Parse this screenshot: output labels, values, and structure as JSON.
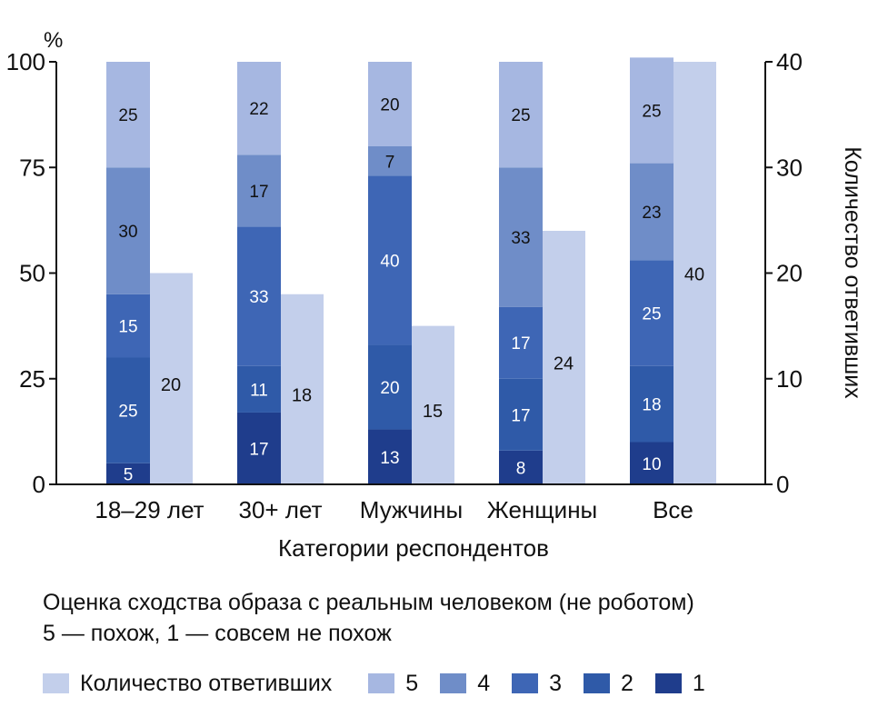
{
  "chart_data": {
    "type": "bar",
    "title": "",
    "xlabel": "Категории респондентов",
    "ylabel_left": "%",
    "ylabel_right": "Количество ответивших",
    "ylim_left": [
      0,
      100
    ],
    "ylim_right": [
      0,
      40
    ],
    "yticks_left": [
      "0",
      "25",
      "50",
      "75",
      "100"
    ],
    "yticks_right": [
      "0",
      "10",
      "20",
      "30",
      "40"
    ],
    "categories": [
      "18–29 лет",
      "30+ лет",
      "Мужчины",
      "Женщины",
      "Все"
    ],
    "stack_order": [
      "1",
      "2",
      "3",
      "4",
      "5"
    ],
    "series": [
      {
        "name": "1",
        "color": "#1f3d8c",
        "values": [
          5,
          17,
          13,
          8,
          10
        ]
      },
      {
        "name": "2",
        "color": "#2f5aa8",
        "values": [
          25,
          11,
          20,
          17,
          18
        ]
      },
      {
        "name": "3",
        "color": "#3e66b5",
        "values": [
          15,
          33,
          40,
          17,
          25
        ]
      },
      {
        "name": "4",
        "color": "#6f8dc8",
        "values": [
          30,
          17,
          7,
          33,
          23
        ]
      },
      {
        "name": "5",
        "color": "#a6b7e1",
        "values": [
          25,
          22,
          20,
          25,
          25
        ]
      }
    ],
    "count_series": {
      "name": "Количество ответивших",
      "color": "#c3cfeb",
      "values": [
        20,
        18,
        15,
        24,
        40
      ]
    }
  },
  "note": {
    "line1": "Оценка сходства образа с реальным человеком (не роботом)",
    "line2": "5 — похож, 1 — совсем не похож"
  },
  "legend": {
    "items": [
      {
        "label": "Количество ответивших",
        "color": "#c3cfeb"
      },
      {
        "label": "5",
        "color": "#a6b7e1"
      },
      {
        "label": "4",
        "color": "#6f8dc8"
      },
      {
        "label": "3",
        "color": "#3e66b5"
      },
      {
        "label": "2",
        "color": "#2f5aa8"
      },
      {
        "label": "1",
        "color": "#1f3d8c"
      }
    ]
  }
}
